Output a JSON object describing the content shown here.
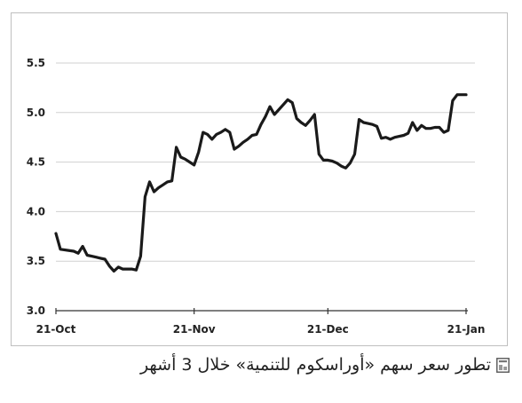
{
  "caption": {
    "text": "تطور سعر سهم «أوراسكوم للتنمية» خلال 3 أشهر",
    "icon": "chart-caption-icon"
  },
  "chart_data": {
    "type": "line",
    "title": "",
    "xlabel": "",
    "ylabel": "",
    "ylim": [
      3.0,
      5.5
    ],
    "yticks": [
      "3.0",
      "3.5",
      "4.0",
      "4.5",
      "5.0",
      "5.5"
    ],
    "xticks": [
      "21-Oct",
      "21-Nov",
      "21-Dec",
      "21-Jan"
    ],
    "xlim": [
      0,
      92
    ],
    "x_tick_positions": [
      0,
      31,
      61,
      92
    ],
    "grid": "horizontal",
    "colors": {
      "line": "#1a1a1a",
      "grid": "#d0d0d0",
      "axis": "#333333"
    },
    "series": [
      {
        "x": [
          0,
          1,
          4,
          5,
          6,
          7,
          8,
          9,
          10,
          11,
          12,
          13,
          14,
          15,
          16,
          17,
          18,
          19,
          20,
          21,
          22,
          23,
          24,
          25,
          26,
          27,
          28,
          29,
          30,
          31,
          32,
          33,
          34,
          35,
          36,
          37,
          38,
          39,
          40,
          41,
          42,
          43,
          44,
          45,
          46,
          47,
          48,
          49,
          50,
          51,
          52,
          53,
          54,
          55,
          56,
          57,
          58,
          59,
          60,
          61,
          62,
          63,
          64,
          65,
          66,
          67,
          68,
          69,
          70,
          71,
          72,
          73,
          74,
          75,
          76,
          77,
          78,
          79,
          80,
          81,
          82,
          83,
          84,
          85,
          86,
          87,
          88,
          89,
          90,
          91,
          92
        ],
        "values": [
          3.78,
          3.62,
          3.6,
          3.58,
          3.65,
          3.56,
          3.55,
          3.54,
          3.53,
          3.52,
          3.45,
          3.4,
          3.44,
          3.42,
          3.42,
          3.42,
          3.41,
          3.55,
          4.15,
          4.3,
          4.2,
          4.24,
          4.27,
          4.3,
          4.31,
          4.65,
          4.55,
          4.53,
          4.5,
          4.47,
          4.6,
          4.8,
          4.78,
          4.73,
          4.78,
          4.8,
          4.83,
          4.8,
          4.63,
          4.66,
          4.7,
          4.73,
          4.77,
          4.78,
          4.88,
          4.96,
          5.06,
          4.98,
          5.03,
          5.08,
          5.13,
          5.1,
          4.94,
          4.9,
          4.87,
          4.92,
          4.98,
          4.58,
          4.52,
          4.52,
          4.51,
          4.49,
          4.46,
          4.44,
          4.49,
          4.58,
          4.93,
          4.9,
          4.89,
          4.88,
          4.86,
          4.74,
          4.75,
          4.73,
          4.75,
          4.76,
          4.77,
          4.79,
          4.9,
          4.82,
          4.87,
          4.84,
          4.84,
          4.85,
          4.85,
          4.8,
          4.82,
          5.12,
          5.18,
          5.18,
          5.18
        ]
      }
    ]
  }
}
